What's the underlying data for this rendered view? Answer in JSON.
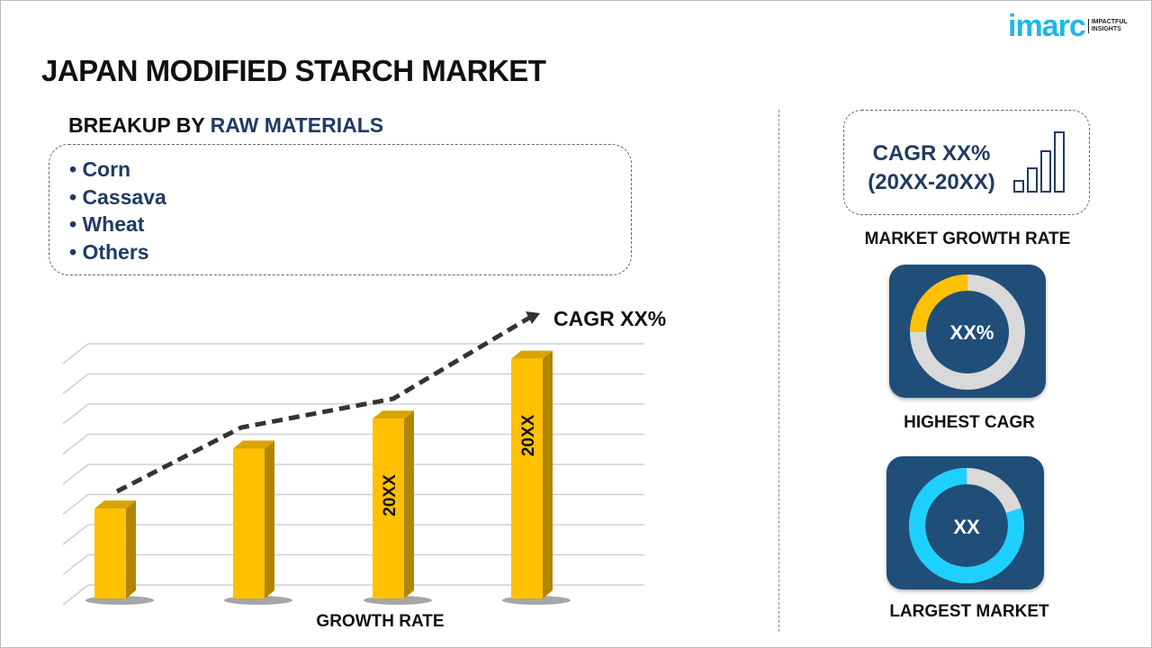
{
  "title": "JAPAN MODIFIED STARCH MARKET",
  "logo": {
    "word": "imarc",
    "tagline_1": "IMPACTFUL",
    "tagline_2": "INSIGHTS"
  },
  "breakup": {
    "prefix": "BREAKUP BY ",
    "highlight": "RAW MATERIALS",
    "items": [
      "• Corn",
      "• Cassava",
      "• Wheat",
      "• Others"
    ]
  },
  "chart": {
    "type": "bar",
    "cagr_label": "CAGR XX%",
    "xlabel": "GROWTH RATE",
    "bar_labels": [
      "",
      "",
      "20XX",
      "20XX"
    ],
    "values": [
      3,
      5,
      6,
      8
    ],
    "ylim": [
      0,
      8.5
    ],
    "bar_color": "#ffc000",
    "trend_color": "#333333"
  },
  "market_growth": {
    "line1": "CAGR XX%",
    "line2": "(20XX-20XX)",
    "caption": "MARKET GROWTH RATE",
    "icon": "bar-growth-icon"
  },
  "highest_cagr": {
    "value": "XX%",
    "caption": "HIGHEST CAGR",
    "fill_percent": 25,
    "color": "#ffc000"
  },
  "largest_market": {
    "value": "XX",
    "caption": "LARGEST MARKET",
    "fill_percent": 80,
    "color": "#1ed0ff"
  },
  "colors": {
    "tile": "#1f4e79",
    "navy_text": "#1f3b64",
    "track": "#d9d9d9"
  }
}
